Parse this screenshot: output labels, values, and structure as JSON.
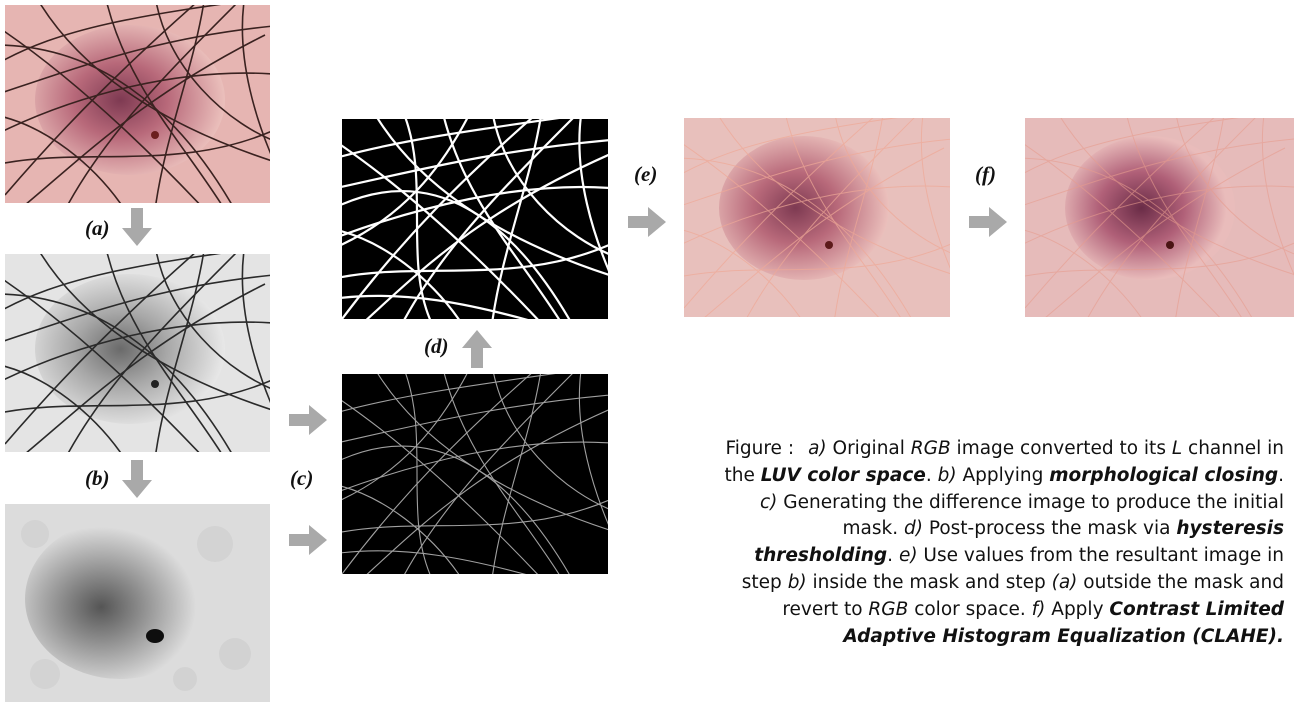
{
  "colors": {
    "arrow": "#a9a9a9",
    "skin": "#e9b7b4",
    "lesion": "#8a3d52",
    "hair": "#3a2220",
    "mask_bg": "#000000",
    "mask_fg": "#ffffff"
  },
  "labels": {
    "a": "(a)",
    "b": "(b)",
    "c": "(c)",
    "d": "(d)",
    "e": "(e)",
    "f": "(f)"
  },
  "caption": {
    "head": "Figure :",
    "a_tag": "a)",
    "a_t1": " Original ",
    "a_rgb": "RGB",
    "a_t2": " image converted to its ",
    "a_l": "L",
    "a_t3": " channel in the ",
    "a_luv": "LUV color space",
    "a_end": ".",
    "b_tag": "b)",
    "b_t1": " Applying ",
    "b_bold": "morphological closing",
    "b_end": ".",
    "c_tag": "c)",
    "c_t1": " Generating the difference image to produce the initial mask.",
    "d_tag": "d)",
    "d_t1": " Post-process the mask via ",
    "d_bold": "hysteresis thresholding",
    "d_end": ".",
    "e_tag": "e)",
    "e_t1": " Use values from the resultant image in step ",
    "e_b": "b)",
    "e_t2": " inside the mask and step ",
    "e_a": "(a)",
    "e_t3": " outside the mask and revert to ",
    "e_rgb": "RGB",
    "e_t4": " color space.",
    "f_tag": "f)",
    "f_t1": " Apply ",
    "f_bold": "Contrast Limited Adaptive Histogram Equalization (CLAHE)."
  }
}
